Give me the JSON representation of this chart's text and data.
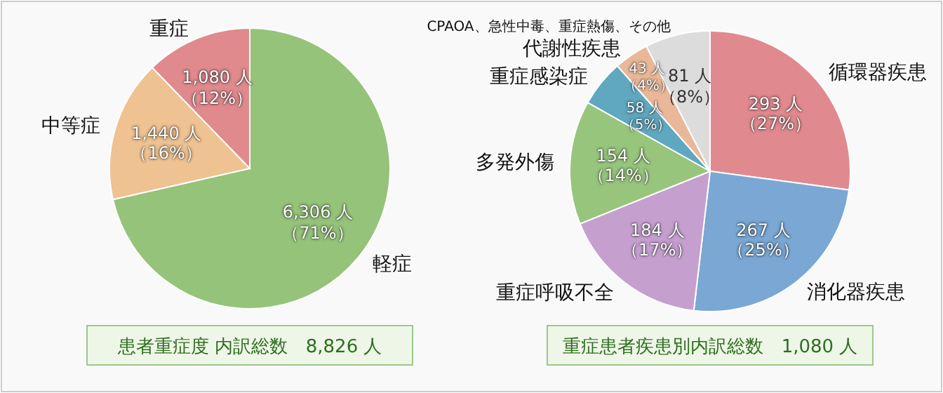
{
  "chart_data": [
    {
      "type": "pie",
      "title": "患者重症度 内訳総数　8,826 人",
      "categories": [
        "軽症",
        "中等症",
        "重症"
      ],
      "values": [
        6306,
        1440,
        1080
      ],
      "colors": [
        "#95c37a",
        "#eec291",
        "#e08a8d"
      ],
      "value_labels": [
        "6,306 人（71%）",
        "1,440 人（16%）",
        "1,080 人（12%）"
      ]
    },
    {
      "type": "pie",
      "title": "重症患者疾患別内訳総数　1,080 人",
      "categories": [
        "循環器疾患",
        "消化器疾患",
        "重症呼吸不全",
        "多発外傷",
        "重症感染症",
        "代謝性疾患",
        "CPAOA、急性中毒、重症熱傷、その他"
      ],
      "values": [
        293,
        267,
        184,
        154,
        58,
        43,
        81
      ],
      "colors": [
        "#e08a8f",
        "#7aa7d4",
        "#c5a0cf",
        "#97c57c",
        "#5fa8bf",
        "#e9b898",
        "#dcdcdc"
      ],
      "value_labels": [
        "293 人（27%）",
        "267 人（25%）",
        "184 人（17%）",
        "154 人（14%）",
        "58 人（5%）",
        "43 人（4%）",
        "81 人（8%）"
      ]
    }
  ]
}
